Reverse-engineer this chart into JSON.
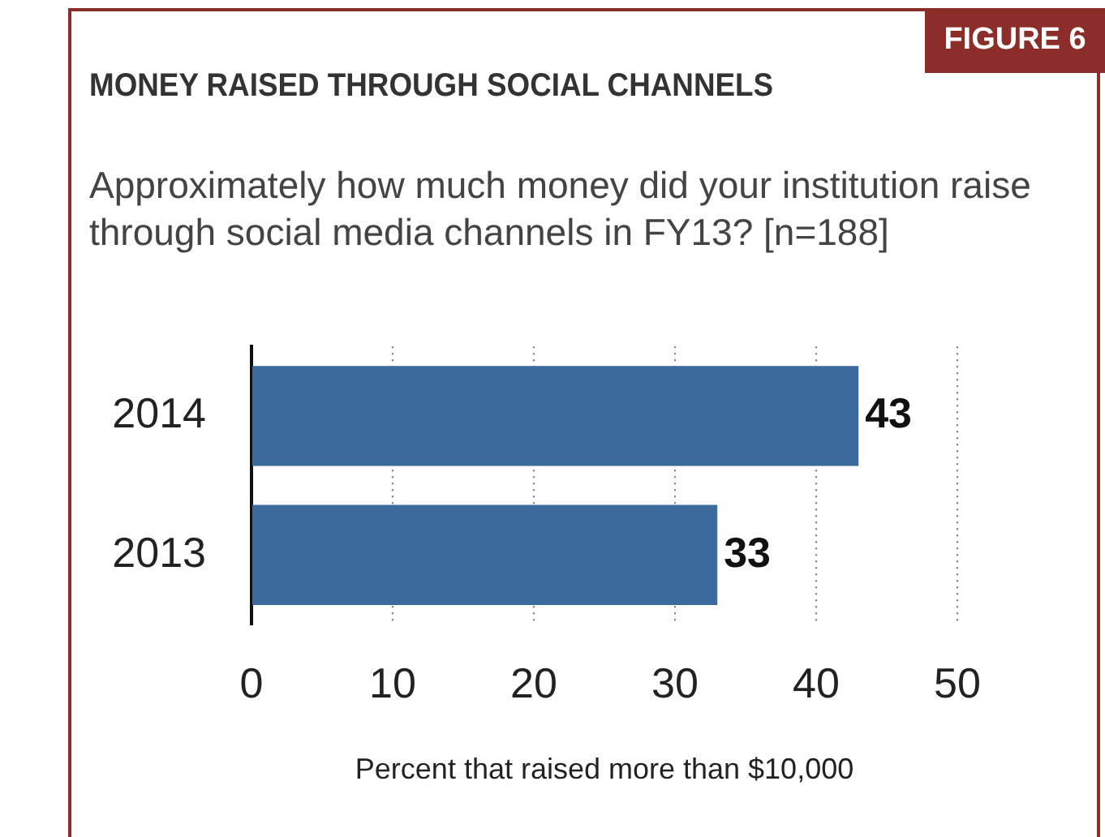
{
  "chart_data": {
    "type": "bar",
    "orientation": "horizontal",
    "title": "MONEY RAISED THROUGH SOCIAL CHANNELS",
    "subtitle": "Approximately how much money did your institution raise through social media channels in FY13? [n=188]",
    "annotations": [
      "FIGURE 6"
    ],
    "xlabel": "Percent that raised more than $10,000",
    "categories": [
      "2014",
      "2013"
    ],
    "series": [
      {
        "color": "#3a6b9c",
        "values": [
          43,
          33
        ]
      }
    ],
    "xlim": [
      0,
      50
    ],
    "xticks": [
      0,
      10,
      20,
      30,
      40,
      50
    ],
    "grid": "x",
    "data_labels": true,
    "legend": false
  }
}
